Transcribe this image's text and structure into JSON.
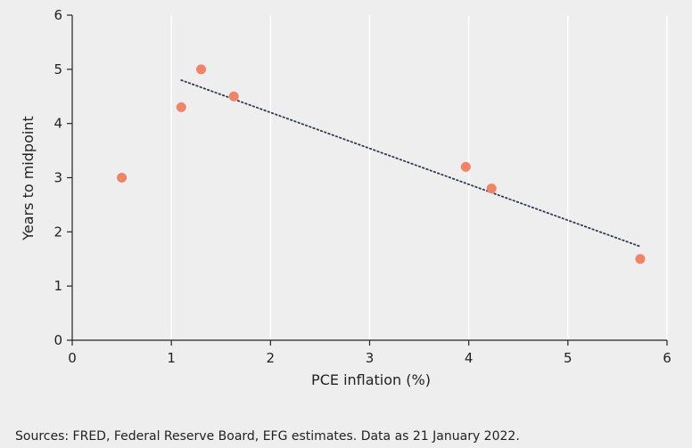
{
  "chart_data": {
    "type": "scatter",
    "title": "",
    "xlabel": "PCE inflation (%)",
    "ylabel": "Years to midpoint",
    "xlim": [
      0,
      6
    ],
    "ylim": [
      0,
      6
    ],
    "x_ticks": [
      "0",
      "1",
      "2",
      "3",
      "4",
      "5",
      "6"
    ],
    "y_ticks": [
      "0",
      "1",
      "2",
      "3",
      "4",
      "5",
      "6"
    ],
    "grid": "vertical",
    "series": [
      {
        "points": [
          {
            "x": 0.5,
            "y": 3.0
          },
          {
            "x": 1.1,
            "y": 4.3
          },
          {
            "x": 1.3,
            "y": 5.0
          },
          {
            "x": 1.63,
            "y": 4.5
          },
          {
            "x": 3.97,
            "y": 3.2
          },
          {
            "x": 4.23,
            "y": 2.8
          },
          {
            "x": 5.73,
            "y": 1.5
          }
        ]
      }
    ],
    "trendline": {
      "style": "dotted",
      "start": {
        "x": 1.1,
        "y": 4.8
      },
      "end": {
        "x": 5.73,
        "y": 1.73
      }
    },
    "colors": {
      "point": "#f08466",
      "trendline": "#2f3a55",
      "background": "#eeeeee",
      "grid": "#ffffff",
      "axis": "#222222"
    }
  },
  "footer": {
    "source": "Sources: FRED, Federal Reserve Board, EFG estimates. Data as 21 January 2022."
  }
}
